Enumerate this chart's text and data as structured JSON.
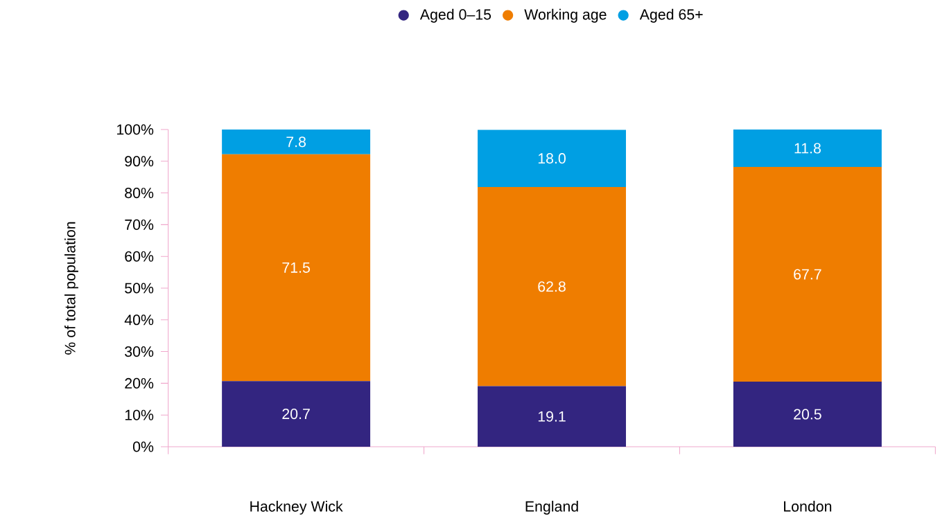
{
  "chart_data": {
    "type": "bar",
    "stacked": true,
    "ylabel": "% of total population",
    "categories": [
      "Hackney Wick",
      "England",
      "London"
    ],
    "series": [
      {
        "name": "Aged 0–15",
        "color": "#332580",
        "values": [
          20.7,
          19.1,
          20.5
        ],
        "value_labels": [
          "20.7",
          "19.1",
          "20.5"
        ]
      },
      {
        "name": "Working age",
        "color": "#ef7d00",
        "values": [
          71.5,
          62.8,
          67.7
        ],
        "value_labels": [
          "71.5",
          "62.8",
          "67.7"
        ]
      },
      {
        "name": "Aged 65+",
        "color": "#009fe3",
        "values": [
          7.8,
          18.0,
          11.8
        ],
        "value_labels": [
          "7.8",
          "18.0",
          "11.8"
        ]
      }
    ],
    "ylim": [
      0,
      100
    ],
    "yticks": [
      {
        "value": 0,
        "label": "0%"
      },
      {
        "value": 10,
        "label": "10%"
      },
      {
        "value": 20,
        "label": "20%"
      },
      {
        "value": 30,
        "label": "30%"
      },
      {
        "value": 40,
        "label": "40%"
      },
      {
        "value": 50,
        "label": "50%"
      },
      {
        "value": 60,
        "label": "60%"
      },
      {
        "value": 70,
        "label": "70%"
      },
      {
        "value": 80,
        "label": "80%"
      },
      {
        "value": 90,
        "label": "90%"
      },
      {
        "value": 100,
        "label": "100%"
      }
    ],
    "legend": "top"
  }
}
